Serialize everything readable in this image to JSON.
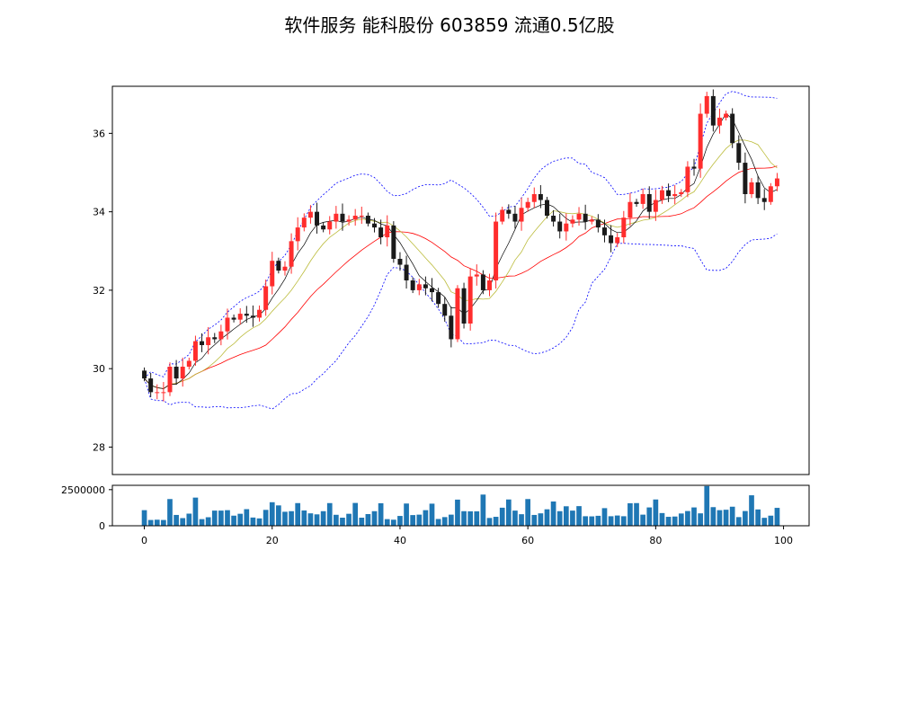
{
  "chart_data": {
    "type": "candlestick",
    "title": "软件服务 能科股份 603859 流通0.5亿股",
    "colors": {
      "up": "#ff2d2d",
      "down": "#1a1a1a",
      "ma_short": "#000000",
      "ma_mid": "#bcbc3c",
      "ma_long": "#ff0000",
      "boll_band": "#0000ff",
      "volume_bar": "#1f77b4"
    },
    "price_axis": {
      "ylim": [
        27.3,
        37.2
      ],
      "ticks": [
        28,
        30,
        32,
        34,
        36
      ]
    },
    "volume_axis": {
      "ylim": [
        0,
        2800000
      ],
      "ticks": [
        0,
        2500000
      ],
      "tick_labels": [
        "0",
        "2500000"
      ]
    },
    "x_axis": {
      "xlim": [
        -5,
        104
      ],
      "ticks": [
        0,
        20,
        40,
        60,
        80,
        100
      ],
      "tick_labels": [
        "0",
        "20",
        "40",
        "60",
        "80",
        "100"
      ]
    },
    "close": [
      29.75,
      29.4,
      29.4,
      29.4,
      30.05,
      29.75,
      30.05,
      30.2,
      30.7,
      30.6,
      30.8,
      30.75,
      30.95,
      31.3,
      31.25,
      31.4,
      31.35,
      31.3,
      31.5,
      32.1,
      32.75,
      32.5,
      32.6,
      33.25,
      33.6,
      33.85,
      34.0,
      33.65,
      33.55,
      33.75,
      33.95,
      33.75,
      33.8,
      33.9,
      33.9,
      33.7,
      33.6,
      33.35,
      33.65,
      32.8,
      32.65,
      32.25,
      32.0,
      32.15,
      32.05,
      31.95,
      31.65,
      31.35,
      30.75,
      32.05,
      31.15,
      32.35,
      32.4,
      32.0,
      32.25,
      33.75,
      34.05,
      33.95,
      33.75,
      34.1,
      34.25,
      34.45,
      34.3,
      33.9,
      33.75,
      33.5,
      33.7,
      33.8,
      33.95,
      33.75,
      33.8,
      33.6,
      33.4,
      33.2,
      33.35,
      33.85,
      34.25,
      34.2,
      34.45,
      34.0,
      34.3,
      34.55,
      34.4,
      34.45,
      34.5,
      35.15,
      35.1,
      36.5,
      36.95,
      36.2,
      36.4,
      36.5,
      35.75,
      35.25,
      34.45,
      34.75,
      34.35,
      34.25,
      34.65,
      34.85
    ],
    "volume": [
      1080000,
      400000,
      420000,
      400000,
      1850000,
      750000,
      530000,
      840000,
      1950000,
      460000,
      590000,
      1050000,
      1050000,
      1080000,
      700000,
      830000,
      1150000,
      570000,
      510000,
      1100000,
      1630000,
      1410000,
      970000,
      1010000,
      1570000,
      1060000,
      860000,
      790000,
      1010000,
      1570000,
      760000,
      560000,
      830000,
      1580000,
      560000,
      810000,
      1010000,
      1560000,
      460000,
      420000,
      680000,
      1540000,
      740000,
      770000,
      1080000,
      1530000,
      470000,
      600000,
      770000,
      1810000,
      1010000,
      1000000,
      1000000,
      2160000,
      540000,
      620000,
      1250000,
      1820000,
      1050000,
      800000,
      1850000,
      750000,
      860000,
      1140000,
      1680000,
      1010000,
      1350000,
      1050000,
      1360000,
      660000,
      650000,
      690000,
      1220000,
      660000,
      710000,
      660000,
      1560000,
      1570000,
      770000,
      1270000,
      1820000,
      880000,
      620000,
      640000,
      850000,
      1020000,
      1270000,
      860000,
      2750000,
      1290000,
      1080000,
      1110000,
      1320000,
      600000,
      1020000,
      2110000,
      1130000,
      550000,
      700000,
      1240000
    ]
  }
}
